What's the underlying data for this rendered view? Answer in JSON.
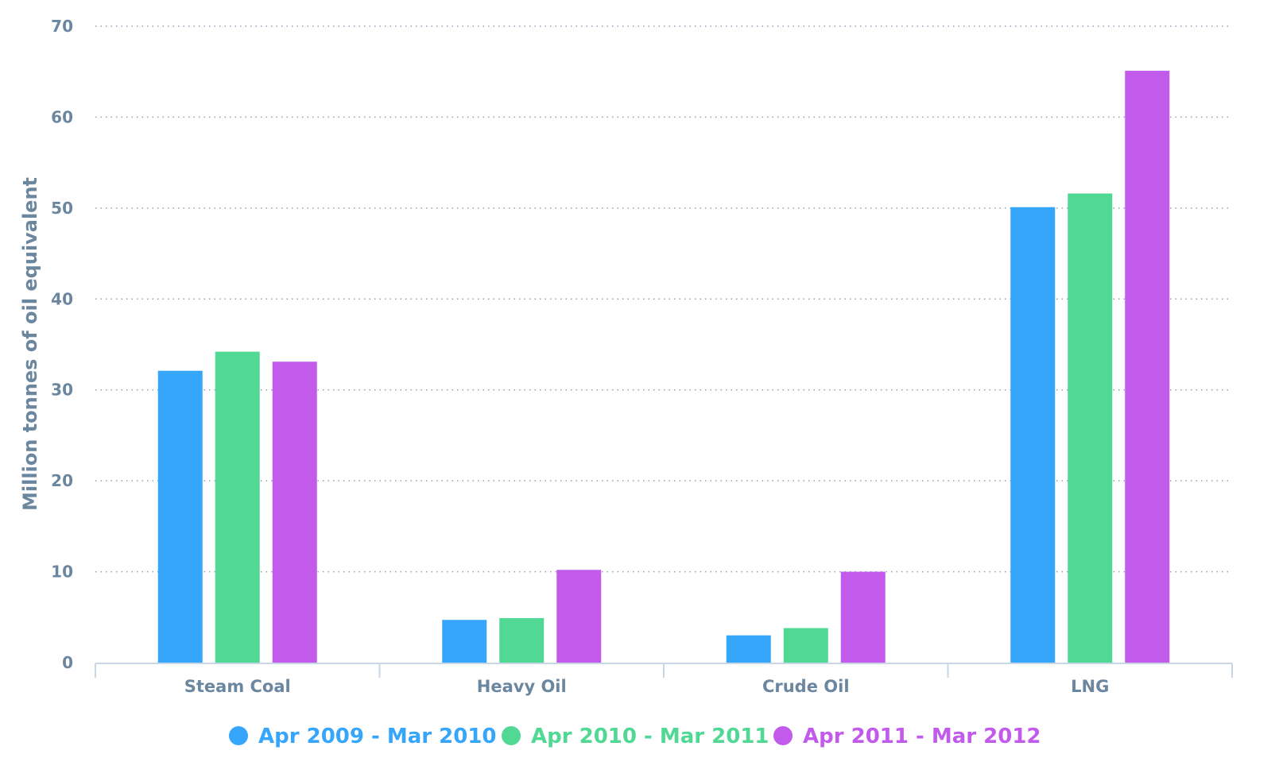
{
  "chart_data": {
    "type": "bar",
    "ylabel": "Million tonnes of oil equivalent",
    "ylim": [
      0,
      70
    ],
    "yticks": [
      0,
      10,
      20,
      30,
      40,
      50,
      60,
      70
    ],
    "categories": [
      "Steam Coal",
      "Heavy Oil",
      "Crude Oil",
      "LNG"
    ],
    "series": [
      {
        "name": "Apr 2009 - Mar 2010",
        "color": "#36a6fb",
        "values": [
          32.1,
          4.7,
          3.0,
          50.1
        ]
      },
      {
        "name": "Apr 2010 - Mar 2011",
        "color": "#50d894",
        "values": [
          34.2,
          4.9,
          3.8,
          51.6
        ]
      },
      {
        "name": "Apr 2011 - Mar 2012",
        "color": "#c25aec",
        "values": [
          33.1,
          10.2,
          10.0,
          65.1
        ]
      }
    ],
    "grid": true,
    "legend": "bottom-center"
  }
}
